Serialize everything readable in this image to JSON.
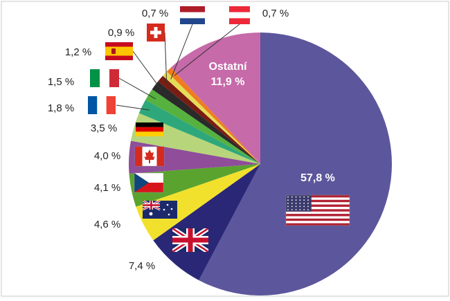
{
  "chart_data": {
    "type": "pie",
    "categories": [
      "USA",
      "UK",
      "Australia",
      "Czech Republic",
      "Canada",
      "Germany",
      "France",
      "Italy",
      "Spain",
      "Switzerland",
      "Netherlands",
      "Austria",
      "Ostatní"
    ],
    "values": [
      57.8,
      7.4,
      4.6,
      4.1,
      4.0,
      3.5,
      1.8,
      1.5,
      1.2,
      0.9,
      0.7,
      0.7,
      11.9
    ],
    "labels": [
      "57,8 %",
      "7,4 %",
      "4,6 %",
      "4,1 %",
      "4,0 %",
      "3,5 %",
      "1,8 %",
      "1,5 %",
      "1,2 %",
      "0,9 %",
      "0,7 %",
      "0,7 %",
      "11,9 %"
    ],
    "other_label": "Ostatní",
    "colors": [
      "#5c569c",
      "#2a2876",
      "#f2e12c",
      "#5aa32f",
      "#8f4d9a",
      "#b7d57a",
      "#2ea87a",
      "#57b13f",
      "#2a2a2a",
      "#7a1c12",
      "#e4dd58",
      "#f07c1f",
      "#c66aa9"
    ],
    "flags": [
      "us-flag",
      "uk-flag",
      "australia-flag",
      "czech-flag",
      "canada-flag",
      "germany-flag",
      "france-flag",
      "italy-flag",
      "spain-flag",
      "switzerland-flag",
      "netherlands-flag",
      "austria-flag",
      ""
    ]
  }
}
